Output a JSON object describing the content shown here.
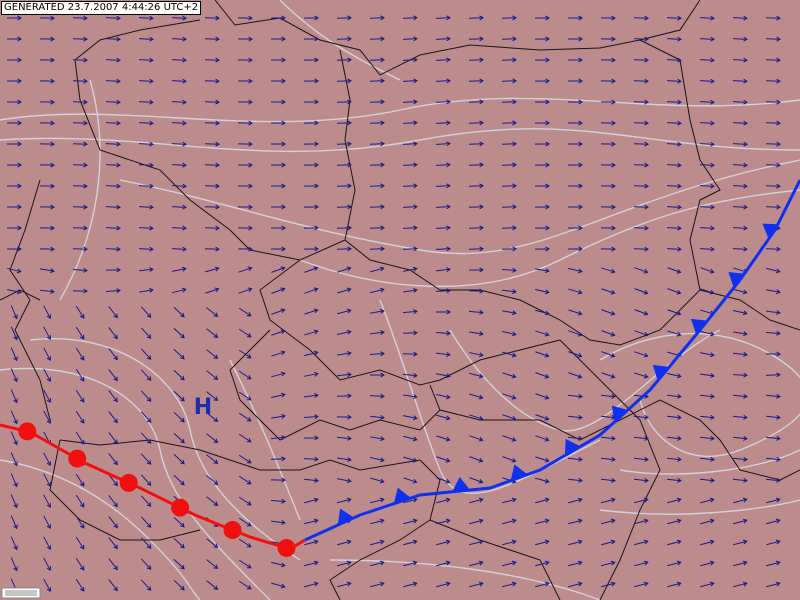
{
  "header": {
    "generated": "GENERATED 23.7.2007 4:44:26 UTC+2"
  },
  "map": {
    "pressure_centers": [
      {
        "label": "H"
      }
    ]
  }
}
